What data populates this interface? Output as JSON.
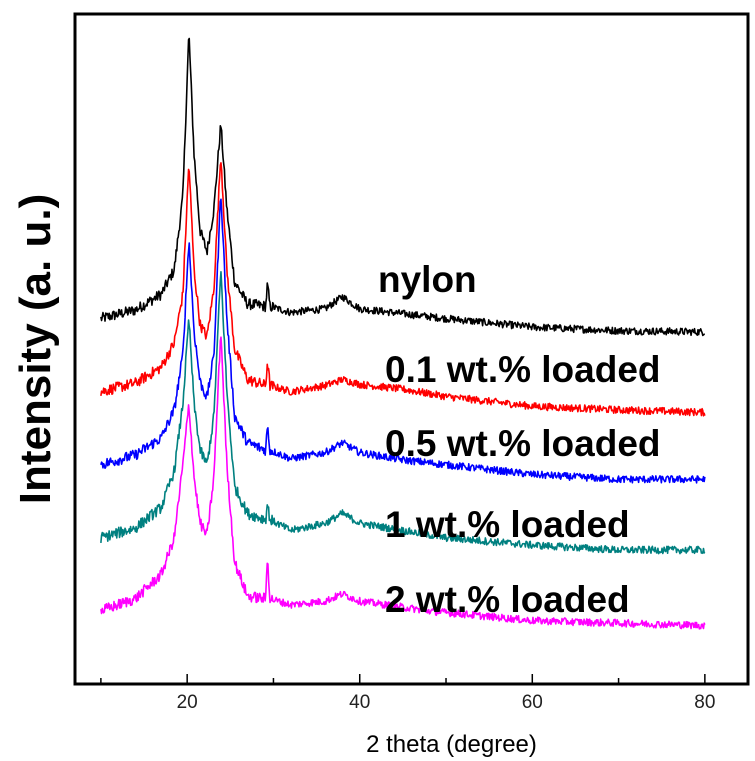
{
  "chart_data": {
    "type": "line",
    "xlabel": "2 theta (degree)",
    "ylabel": "Intensity (a. u.)",
    "xlim": [
      7,
      85
    ],
    "x_ticks": [
      20,
      40,
      60,
      80
    ],
    "y_ticks_shown": false,
    "grid": false,
    "legend": "none (series labelled inline above each curve)",
    "series": [
      {
        "name": "nylon",
        "color": "#000000",
        "offset": 2.4,
        "points": [
          [
            10,
            0.0
          ],
          [
            14,
            0.07
          ],
          [
            17,
            0.2
          ],
          [
            18.5,
            0.4
          ],
          [
            19.5,
            1.0
          ],
          [
            20.2,
            2.35
          ],
          [
            20.8,
            1.35
          ],
          [
            21.5,
            0.72
          ],
          [
            22.3,
            0.55
          ],
          [
            23.1,
            0.9
          ],
          [
            23.9,
            1.6
          ],
          [
            24.6,
            0.9
          ],
          [
            25.5,
            0.3
          ],
          [
            27,
            0.12
          ],
          [
            29.1,
            0.1
          ],
          [
            29.3,
            0.28
          ],
          [
            29.6,
            0.1
          ],
          [
            32,
            0.05
          ],
          [
            36,
            0.08
          ],
          [
            38,
            0.18
          ],
          [
            40,
            0.08
          ],
          [
            45,
            0.04
          ],
          [
            50,
            0.0
          ],
          [
            60,
            -0.07
          ],
          [
            70,
            -0.1
          ],
          [
            80,
            -0.11
          ]
        ]
      },
      {
        "name": "0.1 wt.% loaded",
        "color": "#ff0000",
        "offset": 1.8,
        "points": [
          [
            10,
            0.0
          ],
          [
            14,
            0.07
          ],
          [
            17,
            0.2
          ],
          [
            18.5,
            0.4
          ],
          [
            19.5,
            0.8
          ],
          [
            20.2,
            1.88
          ],
          [
            20.8,
            1.0
          ],
          [
            21.5,
            0.55
          ],
          [
            22.3,
            0.45
          ],
          [
            23.1,
            0.85
          ],
          [
            23.9,
            1.95
          ],
          [
            24.6,
            1.0
          ],
          [
            25.5,
            0.35
          ],
          [
            27,
            0.1
          ],
          [
            29.1,
            0.05
          ],
          [
            29.3,
            0.25
          ],
          [
            29.6,
            0.05
          ],
          [
            32,
            0.0
          ],
          [
            36,
            0.05
          ],
          [
            38,
            0.1
          ],
          [
            40,
            0.06
          ],
          [
            45,
            0.02
          ],
          [
            50,
            -0.04
          ],
          [
            60,
            -0.12
          ],
          [
            70,
            -0.15
          ],
          [
            80,
            -0.17
          ]
        ]
      },
      {
        "name": "0.5 wt.% loaded",
        "color": "#0000ff",
        "offset": 1.2,
        "points": [
          [
            10,
            0.0
          ],
          [
            14,
            0.08
          ],
          [
            17,
            0.22
          ],
          [
            18.5,
            0.45
          ],
          [
            19.5,
            0.9
          ],
          [
            20.2,
            1.85
          ],
          [
            20.8,
            1.1
          ],
          [
            21.5,
            0.68
          ],
          [
            22.3,
            0.55
          ],
          [
            23.1,
            0.9
          ],
          [
            23.9,
            2.25
          ],
          [
            24.6,
            1.2
          ],
          [
            25.5,
            0.4
          ],
          [
            27,
            0.18
          ],
          [
            29.1,
            0.12
          ],
          [
            29.3,
            0.32
          ],
          [
            29.6,
            0.12
          ],
          [
            32,
            0.05
          ],
          [
            36,
            0.1
          ],
          [
            38,
            0.18
          ],
          [
            40,
            0.1
          ],
          [
            45,
            0.04
          ],
          [
            50,
            0.0
          ],
          [
            60,
            -0.08
          ],
          [
            70,
            -0.12
          ],
          [
            80,
            -0.12
          ]
        ]
      },
      {
        "name": "1 wt.% loaded",
        "color": "#008080",
        "offset": 0.6,
        "points": [
          [
            10,
            0.0
          ],
          [
            14,
            0.08
          ],
          [
            17,
            0.25
          ],
          [
            18.5,
            0.55
          ],
          [
            19.5,
            1.1
          ],
          [
            20.2,
            1.8
          ],
          [
            20.8,
            1.1
          ],
          [
            21.5,
            0.72
          ],
          [
            22.3,
            0.6
          ],
          [
            23.1,
            1.0
          ],
          [
            23.9,
            2.2
          ],
          [
            24.6,
            1.2
          ],
          [
            25.5,
            0.42
          ],
          [
            27,
            0.2
          ],
          [
            29.1,
            0.15
          ],
          [
            29.3,
            0.28
          ],
          [
            29.6,
            0.15
          ],
          [
            32,
            0.06
          ],
          [
            36,
            0.12
          ],
          [
            38,
            0.2
          ],
          [
            40,
            0.12
          ],
          [
            45,
            0.06
          ],
          [
            50,
            0.0
          ],
          [
            60,
            -0.06
          ],
          [
            70,
            -0.1
          ],
          [
            80,
            -0.1
          ]
        ]
      },
      {
        "name": "2 wt.% loaded",
        "color": "#ff00ff",
        "offset": 0.0,
        "points": [
          [
            10,
            0.0
          ],
          [
            14,
            0.1
          ],
          [
            17,
            0.3
          ],
          [
            18.5,
            0.6
          ],
          [
            19.5,
            1.2
          ],
          [
            20.2,
            1.7
          ],
          [
            20.8,
            1.1
          ],
          [
            21.5,
            0.72
          ],
          [
            22.3,
            0.62
          ],
          [
            23.1,
            1.1
          ],
          [
            23.9,
            2.3
          ],
          [
            24.6,
            1.2
          ],
          [
            25.5,
            0.4
          ],
          [
            27,
            0.12
          ],
          [
            29.1,
            0.1
          ],
          [
            29.3,
            0.45
          ],
          [
            29.6,
            0.1
          ],
          [
            32,
            0.05
          ],
          [
            36,
            0.08
          ],
          [
            38,
            0.14
          ],
          [
            40,
            0.08
          ],
          [
            45,
            0.03
          ],
          [
            48,
            0.0
          ],
          [
            60,
            -0.08
          ],
          [
            70,
            -0.1
          ],
          [
            80,
            -0.12
          ]
        ]
      }
    ]
  }
}
